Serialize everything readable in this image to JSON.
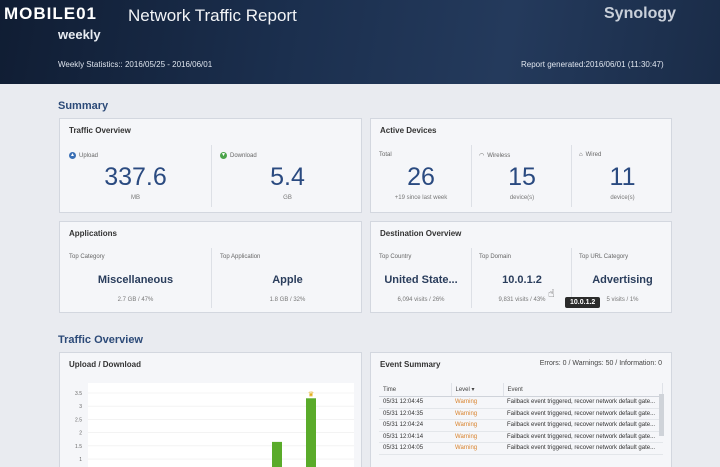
{
  "watermark": "MOBILE01",
  "header": {
    "title": "Network Traffic Report",
    "subtitle": "weekly",
    "brand": "Synology",
    "stats": "Weekly Statistics:: 2016/05/25 - 2016/06/01",
    "generated": "Report generated:2016/06/01 (11:30:47)"
  },
  "summary": {
    "title": "Summary",
    "traffic_overview": {
      "title": "Traffic Overview",
      "upload_label": "Upload",
      "upload_value": "337.6",
      "upload_unit": "MB",
      "download_label": "Download",
      "download_value": "5.4",
      "download_unit": "GB"
    },
    "active_devices": {
      "title": "Active Devices",
      "total_label": "Total",
      "total_value": "26",
      "total_note": "+19 since last week",
      "wireless_label": "Wireless",
      "wireless_value": "15",
      "wireless_unit": "device(s)",
      "wired_label": "Wired",
      "wired_value": "11",
      "wired_unit": "device(s)"
    },
    "applications": {
      "title": "Applications",
      "top_category_label": "Top Category",
      "top_category_value": "Miscellaneous",
      "top_category_note": "2.7 GB / 47%",
      "top_app_label": "Top Application",
      "top_app_value": "Apple",
      "top_app_note": "1.8 GB / 32%"
    },
    "destination_overview": {
      "title": "Destination Overview",
      "top_country_label": "Top Country",
      "top_country_value": "United State...",
      "top_country_note": "6,094 visits / 26%",
      "top_domain_label": "Top Domain",
      "top_domain_value": "10.0.1.2",
      "top_domain_note": "9,831 visits / 43%",
      "top_url_label": "Top URL Category",
      "top_url_value": "Advertising",
      "top_url_note": "5 visits / 1%",
      "tooltip": "10.0.1.2"
    }
  },
  "traffic_section": {
    "title": "Traffic Overview",
    "chart_title": "Upload / Download"
  },
  "chart_data": {
    "type": "bar",
    "y_ticks": [
      "3.5",
      "3",
      "2.5",
      "2",
      "1.5",
      "1"
    ],
    "ylim": [
      0.7,
      3.5
    ],
    "bars": [
      {
        "x_index": 5,
        "value": 1.65,
        "color": "#5aab2a"
      },
      {
        "x_index": 6,
        "value": 3.3,
        "color": "#5aab2a"
      }
    ]
  },
  "event_summary": {
    "title": "Event Summary",
    "counts": "Errors: 0 / Warnings: 50 / Information: 0",
    "columns": [
      "Time",
      "Level",
      "Event"
    ],
    "rows": [
      {
        "time": "05/31 12:04:45",
        "level": "Warning",
        "event": "Failback event triggered, recover network default gate..."
      },
      {
        "time": "05/31 12:04:35",
        "level": "Warning",
        "event": "Failback event triggered, recover network default gate..."
      },
      {
        "time": "05/31 12:04:24",
        "level": "Warning",
        "event": "Failback event triggered, recover network default gate..."
      },
      {
        "time": "05/31 12:04:14",
        "level": "Warning",
        "event": "Failback event triggered, recover network default gate..."
      },
      {
        "time": "05/31 12:04:05",
        "level": "Warning",
        "event": "Failback event triggered, recover network default gate..."
      }
    ]
  }
}
